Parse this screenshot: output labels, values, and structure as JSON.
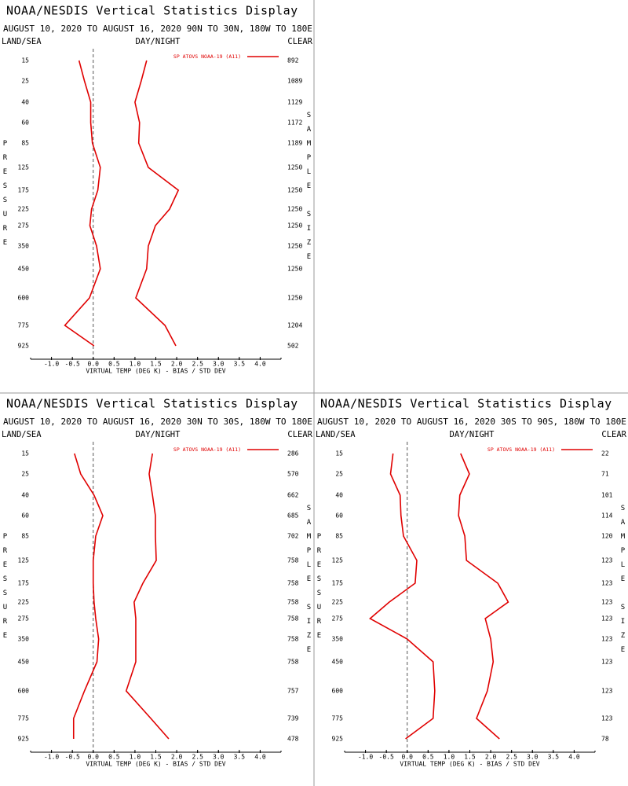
{
  "chart_data": [
    {
      "type": "line",
      "title": "NOAA/NESDIS Vertical Statistics Display",
      "subtitle": "AUGUST 10, 2020 TO AUGUST 16, 2020 90N TO 30N, 180W TO 180E",
      "land_sea": "LAND/SEA",
      "day_night": "DAY/NIGHT",
      "clear": "CLEAR",
      "y_label": "PRESSURE",
      "y2_label": "SAMPLE SIZE",
      "x_label": "VIRTUAL TEMP (DEG K) - BIAS / STD DEV",
      "categories": [
        15,
        25,
        40,
        60,
        85,
        125,
        175,
        225,
        275,
        350,
        450,
        600,
        775,
        925
      ],
      "sample_size": [
        892,
        1089,
        1129,
        1172,
        1189,
        1250,
        1250,
        1250,
        1250,
        1250,
        1250,
        1250,
        1204,
        502
      ],
      "series": [
        {
          "name": "SP ATOVS NOAA-19 (A11)",
          "color": "#e00000",
          "values": [
            -0.34,
            -0.21,
            -0.06,
            -0.06,
            -0.02,
            0.17,
            0.11,
            -0.04,
            -0.08,
            0.08,
            0.17,
            -0.09,
            -0.68,
            0.02
          ]
        },
        {
          "color": "#e00000",
          "values": [
            1.28,
            1.15,
            1.0,
            1.11,
            1.09,
            1.32,
            2.04,
            1.83,
            1.49,
            1.32,
            1.28,
            1.02,
            1.72,
            1.98
          ]
        }
      ],
      "xlim": [
        -1.5,
        4.5
      ],
      "xticks": [
        {
          "value": -1,
          "label": "-1.0"
        },
        {
          "value": -0.5,
          "label": "-0.5"
        },
        {
          "value": 0,
          "label": "0.0"
        },
        {
          "value": 0.5,
          "label": "0.5"
        },
        {
          "value": 1,
          "label": "1.0"
        },
        {
          "value": 1.5,
          "label": "1.5"
        },
        {
          "value": 2,
          "label": "2.0"
        },
        {
          "value": 2.5,
          "label": "2.5"
        },
        {
          "value": 3,
          "label": "3.0"
        },
        {
          "value": 3.5,
          "label": "3.5"
        },
        {
          "value": 4,
          "label": "4.0"
        }
      ]
    },
    {
      "type": "line",
      "title": "NOAA/NESDIS Vertical Statistics Display",
      "subtitle": "AUGUST 10, 2020 TO AUGUST 16, 2020 30N TO 30S, 180W TO 180E",
      "land_sea": "LAND/SEA",
      "day_night": "DAY/NIGHT",
      "clear": "CLEAR",
      "y_label": "PRESSURE",
      "y2_label": "SAMPLE SIZE",
      "x_label": "VIRTUAL TEMP (DEG K) - BIAS / STD DEV",
      "categories": [
        15,
        25,
        40,
        60,
        85,
        125,
        175,
        225,
        275,
        350,
        450,
        600,
        775,
        925
      ],
      "sample_size": [
        286,
        570,
        662,
        685,
        702,
        758,
        758,
        758,
        758,
        758,
        758,
        757,
        739,
        478
      ],
      "series": [
        {
          "name": "SP ATOVS NOAA-19 (A11)",
          "color": "#e00000",
          "values": [
            -0.45,
            -0.3,
            0.02,
            0.23,
            0.06,
            0.0,
            0.0,
            0.02,
            0.06,
            0.13,
            0.09,
            -0.21,
            -0.47,
            -0.47
          ]
        },
        {
          "color": "#e00000",
          "values": [
            1.42,
            1.34,
            1.42,
            1.49,
            1.49,
            1.51,
            1.19,
            0.98,
            1.02,
            1.02,
            1.02,
            0.79,
            1.38,
            1.81
          ]
        }
      ],
      "xlim": [
        -1.5,
        4.5
      ],
      "xticks": [
        {
          "value": -1,
          "label": "-1.0"
        },
        {
          "value": -0.5,
          "label": "-0.5"
        },
        {
          "value": 0,
          "label": "0.0"
        },
        {
          "value": 0.5,
          "label": "0.5"
        },
        {
          "value": 1,
          "label": "1.0"
        },
        {
          "value": 1.5,
          "label": "1.5"
        },
        {
          "value": 2,
          "label": "2.0"
        },
        {
          "value": 2.5,
          "label": "2.5"
        },
        {
          "value": 3,
          "label": "3.0"
        },
        {
          "value": 3.5,
          "label": "3.5"
        },
        {
          "value": 4,
          "label": "4.0"
        }
      ]
    },
    {
      "type": "line",
      "title": "NOAA/NESDIS Vertical Statistics Display",
      "subtitle": "AUGUST 10, 2020 TO AUGUST 16, 2020 30S TO 90S, 180W TO 180E",
      "land_sea": "LAND/SEA",
      "day_night": "DAY/NIGHT",
      "clear": "CLEAR",
      "y_label": "PRESSURE",
      "y2_label": "SAMPLE SIZE",
      "x_label": "VIRTUAL TEMP (DEG K) - BIAS / STD DEV",
      "categories": [
        15,
        25,
        40,
        60,
        85,
        125,
        175,
        225,
        275,
        350,
        450,
        600,
        775,
        925
      ],
      "sample_size": [
        22,
        71,
        101,
        114,
        120,
        123,
        123,
        123,
        123,
        123,
        123,
        123,
        123,
        78
      ],
      "series": [
        {
          "name": "SP ATOVS NOAA-19 (A11)",
          "color": "#e00000",
          "values": [
            -0.34,
            -0.4,
            -0.17,
            -0.15,
            -0.09,
            0.23,
            0.19,
            -0.43,
            -0.89,
            0.0,
            0.62,
            0.66,
            0.62,
            -0.04
          ]
        },
        {
          "color": "#e00000",
          "values": [
            1.28,
            1.49,
            1.26,
            1.23,
            1.38,
            1.42,
            2.17,
            2.42,
            1.87,
            2.0,
            2.06,
            1.92,
            1.66,
            2.21
          ]
        }
      ],
      "xlim": [
        -1.5,
        4.5
      ],
      "xticks": [
        {
          "value": -1,
          "label": "-1.0"
        },
        {
          "value": -0.5,
          "label": "-0.5"
        },
        {
          "value": 0,
          "label": "0.0"
        },
        {
          "value": 0.5,
          "label": "0.5"
        },
        {
          "value": 1,
          "label": "1.0"
        },
        {
          "value": 1.5,
          "label": "1.5"
        },
        {
          "value": 2,
          "label": "2.0"
        },
        {
          "value": 2.5,
          "label": "2.5"
        },
        {
          "value": 3,
          "label": "3.0"
        },
        {
          "value": 3.5,
          "label": "3.5"
        },
        {
          "value": 4,
          "label": "4.0"
        }
      ]
    }
  ]
}
